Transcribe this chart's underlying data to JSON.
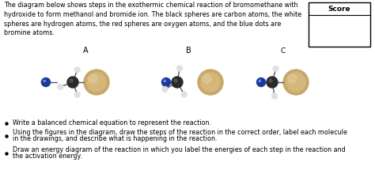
{
  "title_text": "The diagram below shows steps in the exothermic chemical reaction of bromomethane with\nhydroxide to form methanol and bromide ion. The black spheres are carbon atoms, the white\nspheres are hydrogen atoms, the red spheres are oxygen atoms, and the blue dots are\nbromine atoms.",
  "score_label": "Score",
  "section_labels": [
    "A",
    "B",
    "C"
  ],
  "bullet_points": [
    "Write a balanced chemical equation to represent the reaction.",
    "Using the figures in the diagram, draw the steps of the reaction in the correct order, label each molecule\nin the drawings, and describe what is happening in the reaction.",
    "Draw an energy diagram of the reaction in which you label the energies of each step in the reaction and\nthe activation energy."
  ],
  "background_color": "#ffffff",
  "text_color": "#000000",
  "carbon_color": "#2a2a2a",
  "hydrogen_color": "#e0e0e0",
  "blue_atom_color": "#1a3a9f",
  "bromide_color_outer": "#c8a86a",
  "bromide_color_inner": "#d4b87a",
  "bromide_highlight": "#dfc898",
  "bond_color": "#555555",
  "score_box_bg": "#ffffff",
  "score_box_border": "#000000",
  "label_fontsize": 7,
  "text_fontsize": 5.8,
  "bullet_fontsize": 5.8
}
